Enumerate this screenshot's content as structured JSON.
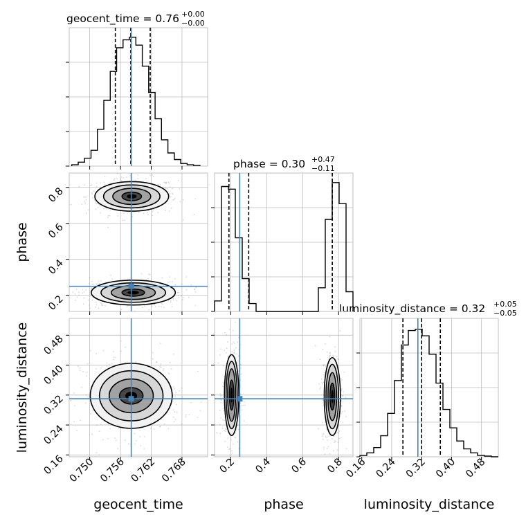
{
  "colors": {
    "truth": "#4682b4",
    "hist": "#000000",
    "grid": "#bdbdbd",
    "scatter": "#8c8c8c"
  },
  "chart_data": {
    "type": "corner",
    "parameters": [
      "geocent_time",
      "phase",
      "luminosity_distance"
    ],
    "titles": [
      {
        "param": "geocent_time",
        "base": "geocent_time = 0.76",
        "plus": "+0.00",
        "minus": "−0.00"
      },
      {
        "param": "phase",
        "base": "phase = 0.30",
        "plus": "+0.47",
        "minus": "−0.11"
      },
      {
        "param": "luminosity_distance",
        "base": "luminosity_distance = 0.32",
        "plus": "+0.05",
        "minus": "−0.05"
      }
    ],
    "axis_labels": {
      "geocent_time": "geocent_time",
      "phase": "phase",
      "luminosity_distance": "luminosity_distance"
    },
    "ranges": {
      "geocent_time": [
        0.746,
        0.773
      ],
      "phase": [
        0.11,
        0.88
      ],
      "luminosity_distance": [
        0.155,
        0.525
      ]
    },
    "ticks": {
      "geocent_time": [
        "0.750",
        "0.756",
        "0.762",
        "0.768"
      ],
      "phase": [
        "0.2",
        "0.4",
        "0.6",
        "0.8"
      ],
      "luminosity_distance": [
        "0.16",
        "0.24",
        "0.32",
        "0.40",
        "0.48"
      ]
    },
    "truths": {
      "geocent_time": 0.7581,
      "phase": 0.25,
      "luminosity_distance": 0.31
    },
    "quantiles": {
      "geocent_time": [
        0.755,
        0.758,
        0.7618
      ],
      "phase": [
        0.19,
        0.3,
        0.765
      ],
      "luminosity_distance": [
        0.27,
        0.32,
        0.37
      ]
    },
    "histograms": {
      "geocent_time": {
        "edges": [
          0.7465,
          0.74775,
          0.749,
          0.75025,
          0.7515,
          0.75275,
          0.754,
          0.75525,
          0.7565,
          0.75775,
          0.759,
          0.76025,
          0.7615,
          0.76275,
          0.764,
          0.76525,
          0.7665,
          0.76775,
          0.769,
          0.77025,
          0.7715
        ],
        "counts": [
          0.01,
          0.03,
          0.06,
          0.12,
          0.28,
          0.5,
          0.72,
          0.9,
          0.96,
          0.98,
          0.92,
          0.76,
          0.56,
          0.36,
          0.2,
          0.1,
          0.05,
          0.02,
          0.01,
          0.005
        ]
      },
      "phase": {
        "edges": [
          0.11,
          0.1485,
          0.187,
          0.2255,
          0.264,
          0.3025,
          0.341,
          0.3795,
          0.418,
          0.4565,
          0.495,
          0.5335,
          0.572,
          0.6105,
          0.649,
          0.6875,
          0.726,
          0.7645,
          0.803,
          0.8415,
          0.88
        ],
        "counts": [
          0.08,
          0.95,
          0.93,
          0.56,
          0.25,
          0.06,
          0.0,
          0.0,
          0.0,
          0.0,
          0.0,
          0.0,
          0.0,
          0.0,
          0.0,
          0.18,
          0.7,
          0.98,
          0.82,
          0.15
        ]
      },
      "luminosity_distance": {
        "edges": [
          0.155,
          0.1735,
          0.192,
          0.2105,
          0.229,
          0.2475,
          0.266,
          0.2845,
          0.303,
          0.3215,
          0.34,
          0.3585,
          0.377,
          0.3955,
          0.414,
          0.4325,
          0.451,
          0.4695,
          0.488,
          0.5065,
          0.525
        ],
        "counts": [
          0.01,
          0.03,
          0.07,
          0.16,
          0.33,
          0.58,
          0.85,
          0.96,
          0.97,
          0.92,
          0.78,
          0.56,
          0.36,
          0.22,
          0.12,
          0.06,
          0.03,
          0.01,
          0.005,
          0.0
        ]
      }
    },
    "contours": [
      {
        "x": "geocent_time",
        "y": "phase",
        "blobs": [
          {
            "cx": 0.7582,
            "cy": 0.75,
            "rx": [
              0.0019,
              0.0037,
              0.0055,
              0.0072
            ],
            "ry": [
              0.024,
              0.045,
              0.064,
              0.082
            ]
          },
          {
            "cx": 0.7585,
            "cy": 0.215,
            "rx": [
              0.0022,
              0.0043,
              0.0063,
              0.0082
            ],
            "ry": [
              0.02,
              0.038,
              0.054,
              0.069
            ]
          }
        ]
      },
      {
        "x": "geocent_time",
        "y": "luminosity_distance",
        "blobs": [
          {
            "cx": 0.7581,
            "cy": 0.318,
            "rx": [
              0.0023,
              0.0043,
              0.0062,
              0.008
            ],
            "ry": [
              0.022,
              0.045,
              0.067,
              0.087
            ]
          }
        ]
      },
      {
        "x": "phase",
        "y": "luminosity_distance",
        "blobs": [
          {
            "cx": 0.205,
            "cy": 0.32,
            "rx": [
              0.012,
              0.022,
              0.031,
              0.04
            ],
            "ry": [
              0.04,
              0.07,
              0.09,
              0.108
            ]
          },
          {
            "cx": 0.765,
            "cy": 0.316,
            "rx": [
              0.013,
              0.024,
              0.035,
              0.045
            ],
            "ry": [
              0.036,
              0.064,
              0.086,
              0.104
            ]
          }
        ]
      }
    ]
  }
}
